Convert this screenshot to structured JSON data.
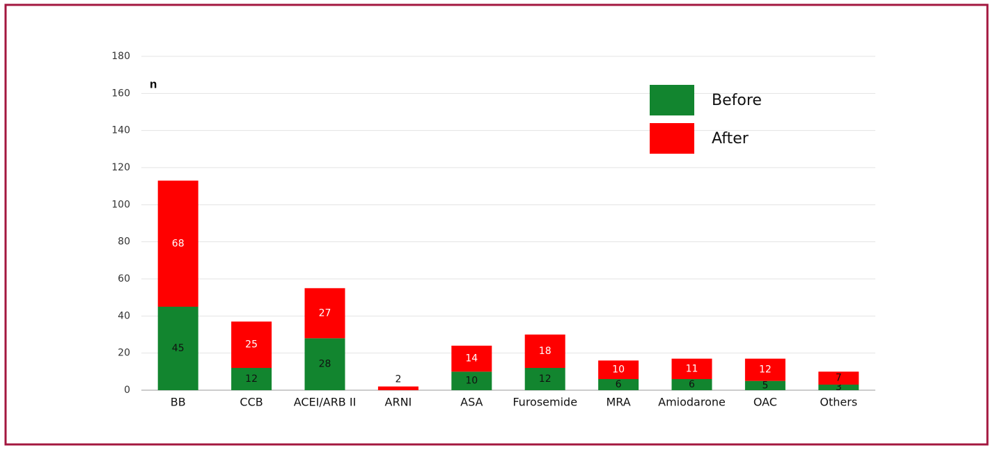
{
  "chart_data": {
    "type": "stacked-bar",
    "y_label": "n",
    "categories": [
      "BB",
      "CCB",
      "ACEI/ARB II",
      "ARNI",
      "ASA",
      "Furosemide",
      "MRA",
      "Amiodarone",
      "OAC",
      "Others"
    ],
    "series": [
      {
        "name": "Before",
        "color": "#12852f",
        "values": [
          45,
          12,
          28,
          null,
          10,
          12,
          6,
          6,
          5,
          3
        ]
      },
      {
        "name": "After",
        "color": "#ff0000",
        "values": [
          68,
          25,
          27,
          2,
          14,
          18,
          10,
          11,
          12,
          7
        ]
      }
    ],
    "ylim": [
      0,
      180
    ],
    "yticks": [
      0,
      20,
      40,
      60,
      80,
      100,
      120,
      140,
      160,
      180
    ],
    "grid": true,
    "legend": "top-right"
  }
}
